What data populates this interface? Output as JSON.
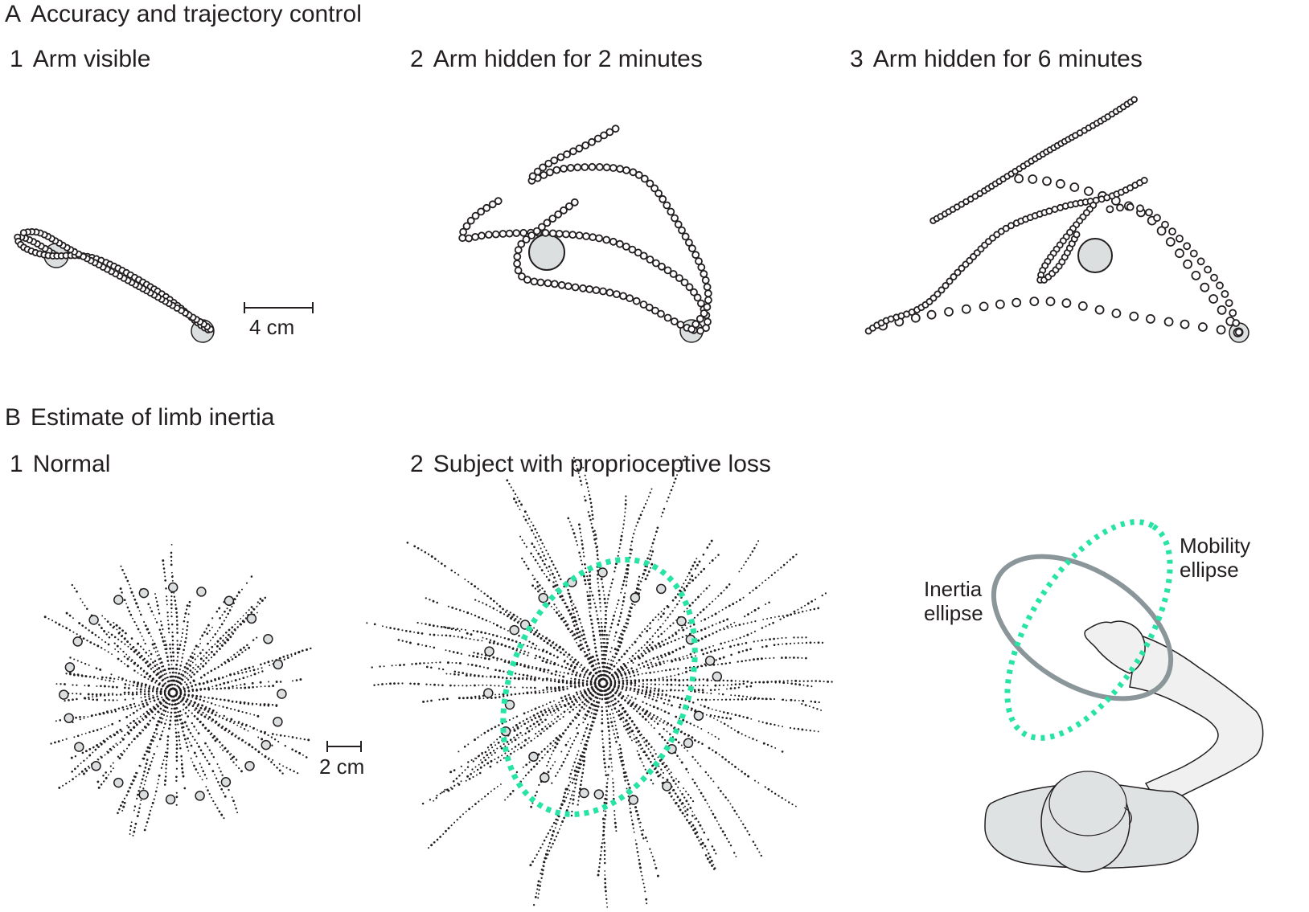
{
  "panel_a": {
    "letter": "A",
    "title": "Accuracy and trajectory control",
    "sub1": {
      "num": "1",
      "label": "Arm visible"
    },
    "sub2": {
      "num": "2",
      "label": "Arm hidden for 2 minutes"
    },
    "sub3": {
      "num": "3",
      "label": "Arm hidden for 6 minutes"
    },
    "scale": "4 cm"
  },
  "panel_b": {
    "letter": "B",
    "title": "Estimate of limb inertia",
    "sub1": {
      "num": "1",
      "label": "Normal"
    },
    "sub2": {
      "num": "2",
      "label": "Subject with proprioceptive loss"
    },
    "scale": "2 cm",
    "inertia_label": [
      "Inertia",
      "ellipse"
    ],
    "mobility_label": [
      "Mobility",
      "ellipse"
    ]
  },
  "colors": {
    "ink": "#231f20",
    "target_fill": "#dcdfe0",
    "mobility": "#27e3a5",
    "inertia": "#8a969a",
    "body_fill": "#dfe2e3",
    "arm_fill": "#f0f0f0"
  }
}
